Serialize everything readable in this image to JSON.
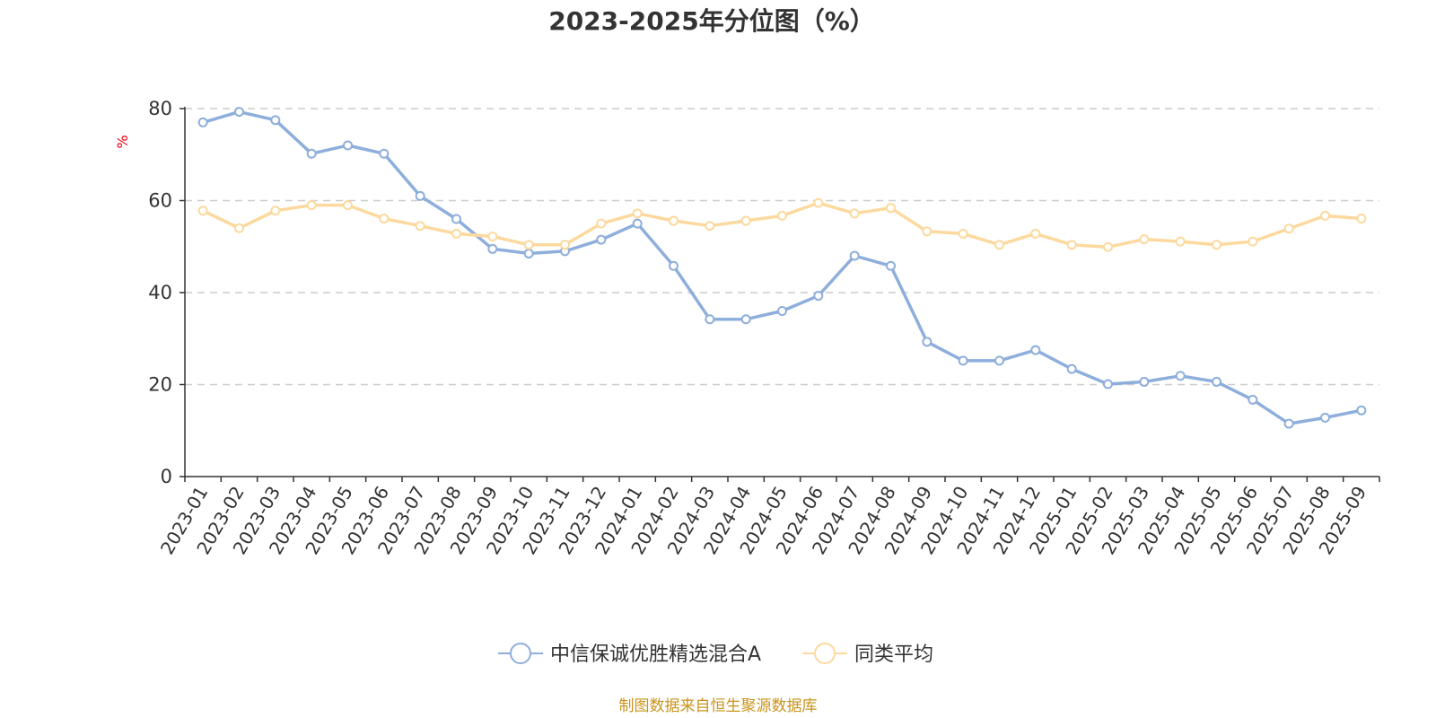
{
  "chart_data": {
    "type": "line",
    "title": "2023-2025年分位图（%）",
    "ylabel": "%",
    "xlabel": "",
    "ylim": [
      0,
      80
    ],
    "yticks": [
      0,
      20,
      40,
      60,
      80
    ],
    "grid": true,
    "legend_position": "bottom-center",
    "categories": [
      "2023-01",
      "2023-02",
      "2023-03",
      "2023-04",
      "2023-05",
      "2023-06",
      "2023-07",
      "2023-08",
      "2023-09",
      "2023-10",
      "2023-11",
      "2023-12",
      "2024-01",
      "2024-02",
      "2024-03",
      "2024-04",
      "2024-05",
      "2024-06",
      "2024-07",
      "2024-08",
      "2024-09",
      "2024-10",
      "2024-11",
      "2024-12",
      "2025-01",
      "2025-02",
      "2025-03",
      "2025-04",
      "2025-05",
      "2025-06",
      "2025-07",
      "2025-08",
      "2025-09"
    ],
    "series": [
      {
        "name": "中信保诚优胜精选混合A",
        "color": "#8eaedb",
        "values": [
          77.0,
          79.3,
          77.5,
          70.2,
          72.0,
          70.2,
          61.0,
          56.0,
          49.5,
          48.5,
          49.0,
          51.5,
          55.0,
          45.8,
          34.2,
          34.2,
          36.0,
          39.3,
          48.0,
          45.8,
          29.3,
          25.2,
          25.2,
          27.5,
          23.4,
          20.1,
          20.6,
          21.9,
          20.6,
          16.7,
          11.5,
          12.8,
          14.4
        ]
      },
      {
        "name": "同类平均",
        "color": "#fcd99e",
        "values": [
          57.8,
          54.0,
          57.8,
          59.0,
          59.0,
          56.1,
          54.5,
          52.8,
          52.2,
          50.4,
          50.4,
          55.0,
          57.2,
          55.6,
          54.5,
          55.6,
          56.7,
          59.5,
          57.2,
          58.4,
          53.3,
          52.8,
          50.4,
          52.8,
          50.4,
          49.9,
          51.6,
          51.1,
          50.4,
          51.1,
          53.9,
          56.7,
          56.1
        ]
      }
    ],
    "source_note": "制图数据来自恒生聚源数据库",
    "colors": {
      "axis": "#333333",
      "grid": "#cccccc",
      "unit_label": "#e8000b",
      "source": "#c9931b"
    }
  }
}
